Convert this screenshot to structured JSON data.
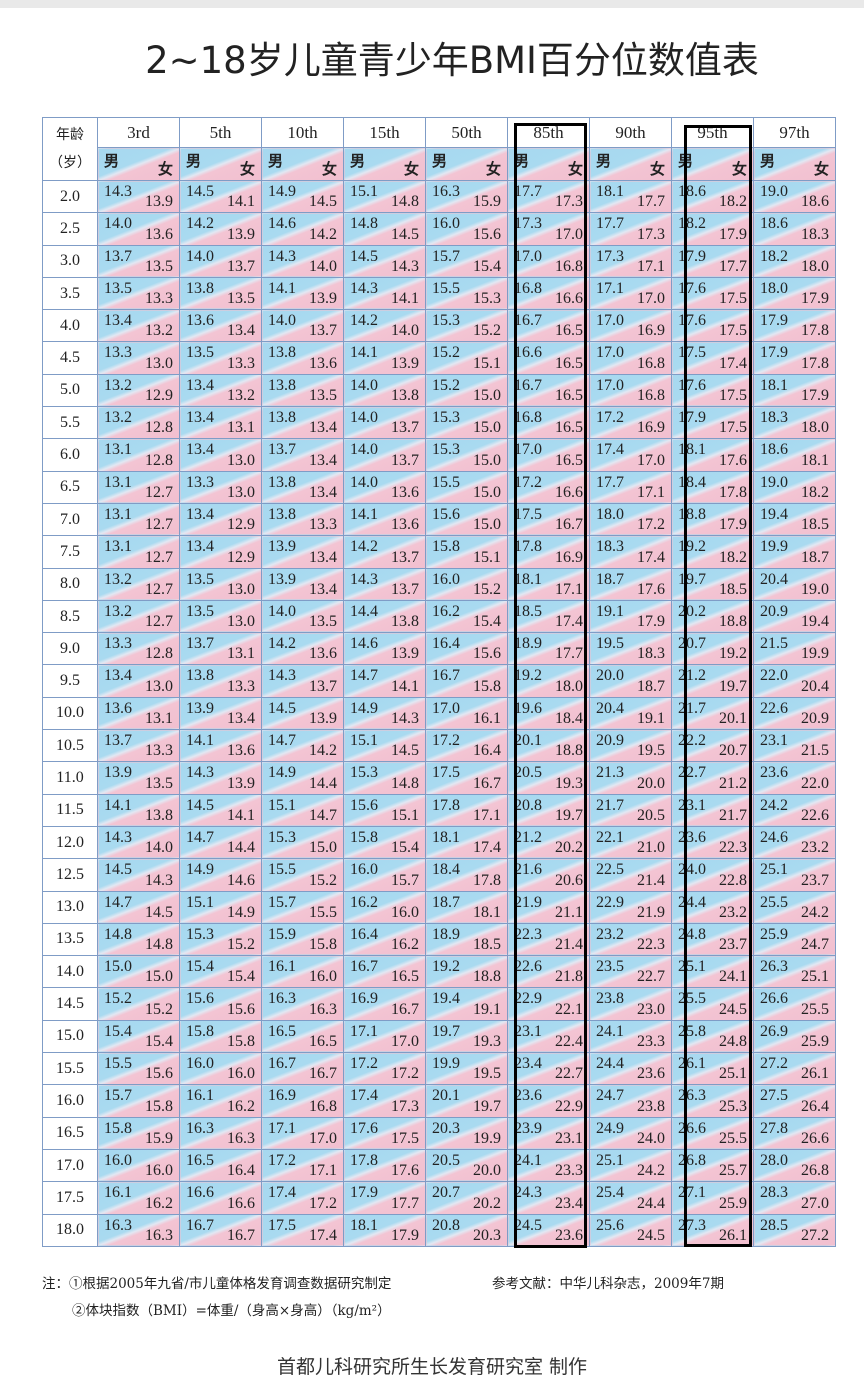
{
  "title": "2~18岁儿童青少年BMI百分位数值表",
  "header": {
    "age_label_1": "年龄",
    "age_label_2": "（岁）",
    "male": "男",
    "female": "女",
    "percentiles": [
      "3rd",
      "5th",
      "10th",
      "15th",
      "50th",
      "85th",
      "90th",
      "95th",
      "97th"
    ]
  },
  "highlighted_columns": [
    "85th",
    "95th"
  ],
  "colors": {
    "male_bg": "#a9daf0",
    "female_bg": "#f3c4d3",
    "grid": "#7f9cc6",
    "highlight_box": "#000000"
  },
  "rows": [
    {
      "age": "2.0",
      "cells": [
        [
          "14.3",
          "13.9"
        ],
        [
          "14.5",
          "14.1"
        ],
        [
          "14.9",
          "14.5"
        ],
        [
          "15.1",
          "14.8"
        ],
        [
          "16.3",
          "15.9"
        ],
        [
          "17.7",
          "17.3"
        ],
        [
          "18.1",
          "17.7"
        ],
        [
          "18.6",
          "18.2"
        ],
        [
          "19.0",
          "18.6"
        ]
      ]
    },
    {
      "age": "2.5",
      "cells": [
        [
          "14.0",
          "13.6"
        ],
        [
          "14.2",
          "13.9"
        ],
        [
          "14.6",
          "14.2"
        ],
        [
          "14.8",
          "14.5"
        ],
        [
          "16.0",
          "15.6"
        ],
        [
          "17.3",
          "17.0"
        ],
        [
          "17.7",
          "17.3"
        ],
        [
          "18.2",
          "17.9"
        ],
        [
          "18.6",
          "18.3"
        ]
      ]
    },
    {
      "age": "3.0",
      "cells": [
        [
          "13.7",
          "13.5"
        ],
        [
          "14.0",
          "13.7"
        ],
        [
          "14.3",
          "14.0"
        ],
        [
          "14.5",
          "14.3"
        ],
        [
          "15.7",
          "15.4"
        ],
        [
          "17.0",
          "16.8"
        ],
        [
          "17.3",
          "17.1"
        ],
        [
          "17.9",
          "17.7"
        ],
        [
          "18.2",
          "18.0"
        ]
      ]
    },
    {
      "age": "3.5",
      "cells": [
        [
          "13.5",
          "13.3"
        ],
        [
          "13.8",
          "13.5"
        ],
        [
          "14.1",
          "13.9"
        ],
        [
          "14.3",
          "14.1"
        ],
        [
          "15.5",
          "15.3"
        ],
        [
          "16.8",
          "16.6"
        ],
        [
          "17.1",
          "17.0"
        ],
        [
          "17.6",
          "17.5"
        ],
        [
          "18.0",
          "17.9"
        ]
      ]
    },
    {
      "age": "4.0",
      "cells": [
        [
          "13.4",
          "13.2"
        ],
        [
          "13.6",
          "13.4"
        ],
        [
          "14.0",
          "13.7"
        ],
        [
          "14.2",
          "14.0"
        ],
        [
          "15.3",
          "15.2"
        ],
        [
          "16.7",
          "16.5"
        ],
        [
          "17.0",
          "16.9"
        ],
        [
          "17.6",
          "17.5"
        ],
        [
          "17.9",
          "17.8"
        ]
      ]
    },
    {
      "age": "4.5",
      "cells": [
        [
          "13.3",
          "13.0"
        ],
        [
          "13.5",
          "13.3"
        ],
        [
          "13.8",
          "13.6"
        ],
        [
          "14.1",
          "13.9"
        ],
        [
          "15.2",
          "15.1"
        ],
        [
          "16.6",
          "16.5"
        ],
        [
          "17.0",
          "16.8"
        ],
        [
          "17.5",
          "17.4"
        ],
        [
          "17.9",
          "17.8"
        ]
      ]
    },
    {
      "age": "5.0",
      "cells": [
        [
          "13.2",
          "12.9"
        ],
        [
          "13.4",
          "13.2"
        ],
        [
          "13.8",
          "13.5"
        ],
        [
          "14.0",
          "13.8"
        ],
        [
          "15.2",
          "15.0"
        ],
        [
          "16.7",
          "16.5"
        ],
        [
          "17.0",
          "16.8"
        ],
        [
          "17.6",
          "17.5"
        ],
        [
          "18.1",
          "17.9"
        ]
      ]
    },
    {
      "age": "5.5",
      "cells": [
        [
          "13.2",
          "12.8"
        ],
        [
          "13.4",
          "13.1"
        ],
        [
          "13.8",
          "13.4"
        ],
        [
          "14.0",
          "13.7"
        ],
        [
          "15.3",
          "15.0"
        ],
        [
          "16.8",
          "16.5"
        ],
        [
          "17.2",
          "16.9"
        ],
        [
          "17.9",
          "17.5"
        ],
        [
          "18.3",
          "18.0"
        ]
      ]
    },
    {
      "age": "6.0",
      "cells": [
        [
          "13.1",
          "12.8"
        ],
        [
          "13.4",
          "13.0"
        ],
        [
          "13.7",
          "13.4"
        ],
        [
          "14.0",
          "13.7"
        ],
        [
          "15.3",
          "15.0"
        ],
        [
          "17.0",
          "16.5"
        ],
        [
          "17.4",
          "17.0"
        ],
        [
          "18.1",
          "17.6"
        ],
        [
          "18.6",
          "18.1"
        ]
      ]
    },
    {
      "age": "6.5",
      "cells": [
        [
          "13.1",
          "12.7"
        ],
        [
          "13.3",
          "13.0"
        ],
        [
          "13.8",
          "13.4"
        ],
        [
          "14.0",
          "13.6"
        ],
        [
          "15.5",
          "15.0"
        ],
        [
          "17.2",
          "16.6"
        ],
        [
          "17.7",
          "17.1"
        ],
        [
          "18.4",
          "17.8"
        ],
        [
          "19.0",
          "18.2"
        ]
      ]
    },
    {
      "age": "7.0",
      "cells": [
        [
          "13.1",
          "12.7"
        ],
        [
          "13.4",
          "12.9"
        ],
        [
          "13.8",
          "13.3"
        ],
        [
          "14.1",
          "13.6"
        ],
        [
          "15.6",
          "15.0"
        ],
        [
          "17.5",
          "16.7"
        ],
        [
          "18.0",
          "17.2"
        ],
        [
          "18.8",
          "17.9"
        ],
        [
          "19.4",
          "18.5"
        ]
      ]
    },
    {
      "age": "7.5",
      "cells": [
        [
          "13.1",
          "12.7"
        ],
        [
          "13.4",
          "12.9"
        ],
        [
          "13.9",
          "13.4"
        ],
        [
          "14.2",
          "13.7"
        ],
        [
          "15.8",
          "15.1"
        ],
        [
          "17.8",
          "16.9"
        ],
        [
          "18.3",
          "17.4"
        ],
        [
          "19.2",
          "18.2"
        ],
        [
          "19.9",
          "18.7"
        ]
      ]
    },
    {
      "age": "8.0",
      "cells": [
        [
          "13.2",
          "12.7"
        ],
        [
          "13.5",
          "13.0"
        ],
        [
          "13.9",
          "13.4"
        ],
        [
          "14.3",
          "13.7"
        ],
        [
          "16.0",
          "15.2"
        ],
        [
          "18.1",
          "17.1"
        ],
        [
          "18.7",
          "17.6"
        ],
        [
          "19.7",
          "18.5"
        ],
        [
          "20.4",
          "19.0"
        ]
      ]
    },
    {
      "age": "8.5",
      "cells": [
        [
          "13.2",
          "12.7"
        ],
        [
          "13.5",
          "13.0"
        ],
        [
          "14.0",
          "13.5"
        ],
        [
          "14.4",
          "13.8"
        ],
        [
          "16.2",
          "15.4"
        ],
        [
          "18.5",
          "17.4"
        ],
        [
          "19.1",
          "17.9"
        ],
        [
          "20.2",
          "18.8"
        ],
        [
          "20.9",
          "19.4"
        ]
      ]
    },
    {
      "age": "9.0",
      "cells": [
        [
          "13.3",
          "12.8"
        ],
        [
          "13.7",
          "13.1"
        ],
        [
          "14.2",
          "13.6"
        ],
        [
          "14.6",
          "13.9"
        ],
        [
          "16.4",
          "15.6"
        ],
        [
          "18.9",
          "17.7"
        ],
        [
          "19.5",
          "18.3"
        ],
        [
          "20.7",
          "19.2"
        ],
        [
          "21.5",
          "19.9"
        ]
      ]
    },
    {
      "age": "9.5",
      "cells": [
        [
          "13.4",
          "13.0"
        ],
        [
          "13.8",
          "13.3"
        ],
        [
          "14.3",
          "13.7"
        ],
        [
          "14.7",
          "14.1"
        ],
        [
          "16.7",
          "15.8"
        ],
        [
          "19.2",
          "18.0"
        ],
        [
          "20.0",
          "18.7"
        ],
        [
          "21.2",
          "19.7"
        ],
        [
          "22.0",
          "20.4"
        ]
      ]
    },
    {
      "age": "10.0",
      "cells": [
        [
          "13.6",
          "13.1"
        ],
        [
          "13.9",
          "13.4"
        ],
        [
          "14.5",
          "13.9"
        ],
        [
          "14.9",
          "14.3"
        ],
        [
          "17.0",
          "16.1"
        ],
        [
          "19.6",
          "18.4"
        ],
        [
          "20.4",
          "19.1"
        ],
        [
          "21.7",
          "20.1"
        ],
        [
          "22.6",
          "20.9"
        ]
      ]
    },
    {
      "age": "10.5",
      "cells": [
        [
          "13.7",
          "13.3"
        ],
        [
          "14.1",
          "13.6"
        ],
        [
          "14.7",
          "14.2"
        ],
        [
          "15.1",
          "14.5"
        ],
        [
          "17.2",
          "16.4"
        ],
        [
          "20.1",
          "18.8"
        ],
        [
          "20.9",
          "19.5"
        ],
        [
          "22.2",
          "20.7"
        ],
        [
          "23.1",
          "21.5"
        ]
      ]
    },
    {
      "age": "11.0",
      "cells": [
        [
          "13.9",
          "13.5"
        ],
        [
          "14.3",
          "13.9"
        ],
        [
          "14.9",
          "14.4"
        ],
        [
          "15.3",
          "14.8"
        ],
        [
          "17.5",
          "16.7"
        ],
        [
          "20.5",
          "19.3"
        ],
        [
          "21.3",
          "20.0"
        ],
        [
          "22.7",
          "21.2"
        ],
        [
          "23.6",
          "22.0"
        ]
      ]
    },
    {
      "age": "11.5",
      "cells": [
        [
          "14.1",
          "13.8"
        ],
        [
          "14.5",
          "14.1"
        ],
        [
          "15.1",
          "14.7"
        ],
        [
          "15.6",
          "15.1"
        ],
        [
          "17.8",
          "17.1"
        ],
        [
          "20.8",
          "19.7"
        ],
        [
          "21.7",
          "20.5"
        ],
        [
          "23.1",
          "21.7"
        ],
        [
          "24.2",
          "22.6"
        ]
      ]
    },
    {
      "age": "12.0",
      "cells": [
        [
          "14.3",
          "14.0"
        ],
        [
          "14.7",
          "14.4"
        ],
        [
          "15.3",
          "15.0"
        ],
        [
          "15.8",
          "15.4"
        ],
        [
          "18.1",
          "17.4"
        ],
        [
          "21.2",
          "20.2"
        ],
        [
          "22.1",
          "21.0"
        ],
        [
          "23.6",
          "22.3"
        ],
        [
          "24.6",
          "23.2"
        ]
      ]
    },
    {
      "age": "12.5",
      "cells": [
        [
          "14.5",
          "14.3"
        ],
        [
          "14.9",
          "14.6"
        ],
        [
          "15.5",
          "15.2"
        ],
        [
          "16.0",
          "15.7"
        ],
        [
          "18.4",
          "17.8"
        ],
        [
          "21.6",
          "20.6"
        ],
        [
          "22.5",
          "21.4"
        ],
        [
          "24.0",
          "22.8"
        ],
        [
          "25.1",
          "23.7"
        ]
      ]
    },
    {
      "age": "13.0",
      "cells": [
        [
          "14.7",
          "14.5"
        ],
        [
          "15.1",
          "14.9"
        ],
        [
          "15.7",
          "15.5"
        ],
        [
          "16.2",
          "16.0"
        ],
        [
          "18.7",
          "18.1"
        ],
        [
          "21.9",
          "21.1"
        ],
        [
          "22.9",
          "21.9"
        ],
        [
          "24.4",
          "23.2"
        ],
        [
          "25.5",
          "24.2"
        ]
      ]
    },
    {
      "age": "13.5",
      "cells": [
        [
          "14.8",
          "14.8"
        ],
        [
          "15.3",
          "15.2"
        ],
        [
          "15.9",
          "15.8"
        ],
        [
          "16.4",
          "16.2"
        ],
        [
          "18.9",
          "18.5"
        ],
        [
          "22.3",
          "21.4"
        ],
        [
          "23.2",
          "22.3"
        ],
        [
          "24.8",
          "23.7"
        ],
        [
          "25.9",
          "24.7"
        ]
      ]
    },
    {
      "age": "14.0",
      "cells": [
        [
          "15.0",
          "15.0"
        ],
        [
          "15.4",
          "15.4"
        ],
        [
          "16.1",
          "16.0"
        ],
        [
          "16.7",
          "16.5"
        ],
        [
          "19.2",
          "18.8"
        ],
        [
          "22.6",
          "21.8"
        ],
        [
          "23.5",
          "22.7"
        ],
        [
          "25.1",
          "24.1"
        ],
        [
          "26.3",
          "25.1"
        ]
      ]
    },
    {
      "age": "14.5",
      "cells": [
        [
          "15.2",
          "15.2"
        ],
        [
          "15.6",
          "15.6"
        ],
        [
          "16.3",
          "16.3"
        ],
        [
          "16.9",
          "16.7"
        ],
        [
          "19.4",
          "19.1"
        ],
        [
          "22.9",
          "22.1"
        ],
        [
          "23.8",
          "23.0"
        ],
        [
          "25.5",
          "24.5"
        ],
        [
          "26.6",
          "25.5"
        ]
      ]
    },
    {
      "age": "15.0",
      "cells": [
        [
          "15.4",
          "15.4"
        ],
        [
          "15.8",
          "15.8"
        ],
        [
          "16.5",
          "16.5"
        ],
        [
          "17.1",
          "17.0"
        ],
        [
          "19.7",
          "19.3"
        ],
        [
          "23.1",
          "22.4"
        ],
        [
          "24.1",
          "23.3"
        ],
        [
          "25.8",
          "24.8"
        ],
        [
          "26.9",
          "25.9"
        ]
      ]
    },
    {
      "age": "15.5",
      "cells": [
        [
          "15.5",
          "15.6"
        ],
        [
          "16.0",
          "16.0"
        ],
        [
          "16.7",
          "16.7"
        ],
        [
          "17.2",
          "17.2"
        ],
        [
          "19.9",
          "19.5"
        ],
        [
          "23.4",
          "22.7"
        ],
        [
          "24.4",
          "23.6"
        ],
        [
          "26.1",
          "25.1"
        ],
        [
          "27.2",
          "26.1"
        ]
      ]
    },
    {
      "age": "16.0",
      "cells": [
        [
          "15.7",
          "15.8"
        ],
        [
          "16.1",
          "16.2"
        ],
        [
          "16.9",
          "16.8"
        ],
        [
          "17.4",
          "17.3"
        ],
        [
          "20.1",
          "19.7"
        ],
        [
          "23.6",
          "22.9"
        ],
        [
          "24.7",
          "23.8"
        ],
        [
          "26.3",
          "25.3"
        ],
        [
          "27.5",
          "26.4"
        ]
      ]
    },
    {
      "age": "16.5",
      "cells": [
        [
          "15.8",
          "15.9"
        ],
        [
          "16.3",
          "16.3"
        ],
        [
          "17.1",
          "17.0"
        ],
        [
          "17.6",
          "17.5"
        ],
        [
          "20.3",
          "19.9"
        ],
        [
          "23.9",
          "23.1"
        ],
        [
          "24.9",
          "24.0"
        ],
        [
          "26.6",
          "25.5"
        ],
        [
          "27.8",
          "26.6"
        ]
      ]
    },
    {
      "age": "17.0",
      "cells": [
        [
          "16.0",
          "16.0"
        ],
        [
          "16.5",
          "16.4"
        ],
        [
          "17.2",
          "17.1"
        ],
        [
          "17.8",
          "17.6"
        ],
        [
          "20.5",
          "20.0"
        ],
        [
          "24.1",
          "23.3"
        ],
        [
          "25.1",
          "24.2"
        ],
        [
          "26.8",
          "25.7"
        ],
        [
          "28.0",
          "26.8"
        ]
      ]
    },
    {
      "age": "17.5",
      "cells": [
        [
          "16.1",
          "16.2"
        ],
        [
          "16.6",
          "16.6"
        ],
        [
          "17.4",
          "17.2"
        ],
        [
          "17.9",
          "17.7"
        ],
        [
          "20.7",
          "20.2"
        ],
        [
          "24.3",
          "23.4"
        ],
        [
          "25.4",
          "24.4"
        ],
        [
          "27.1",
          "25.9"
        ],
        [
          "28.3",
          "27.0"
        ]
      ]
    },
    {
      "age": "18.0",
      "cells": [
        [
          "16.3",
          "16.3"
        ],
        [
          "16.7",
          "16.7"
        ],
        [
          "17.5",
          "17.4"
        ],
        [
          "18.1",
          "17.9"
        ],
        [
          "20.8",
          "20.3"
        ],
        [
          "24.5",
          "23.6"
        ],
        [
          "25.6",
          "24.5"
        ],
        [
          "27.3",
          "26.1"
        ],
        [
          "28.5",
          "27.2"
        ]
      ]
    }
  ],
  "notes": {
    "note1": "注：①根据2005年九省/市儿童体格发育调查数据研究制定",
    "reference": "参考文献：中华儿科杂志，2009年7期",
    "note2": "②体块指数（BMI）=体重/（身高×身高）（kg/m²）",
    "maker": "首都儿科研究所生长发育研究室 制作"
  }
}
